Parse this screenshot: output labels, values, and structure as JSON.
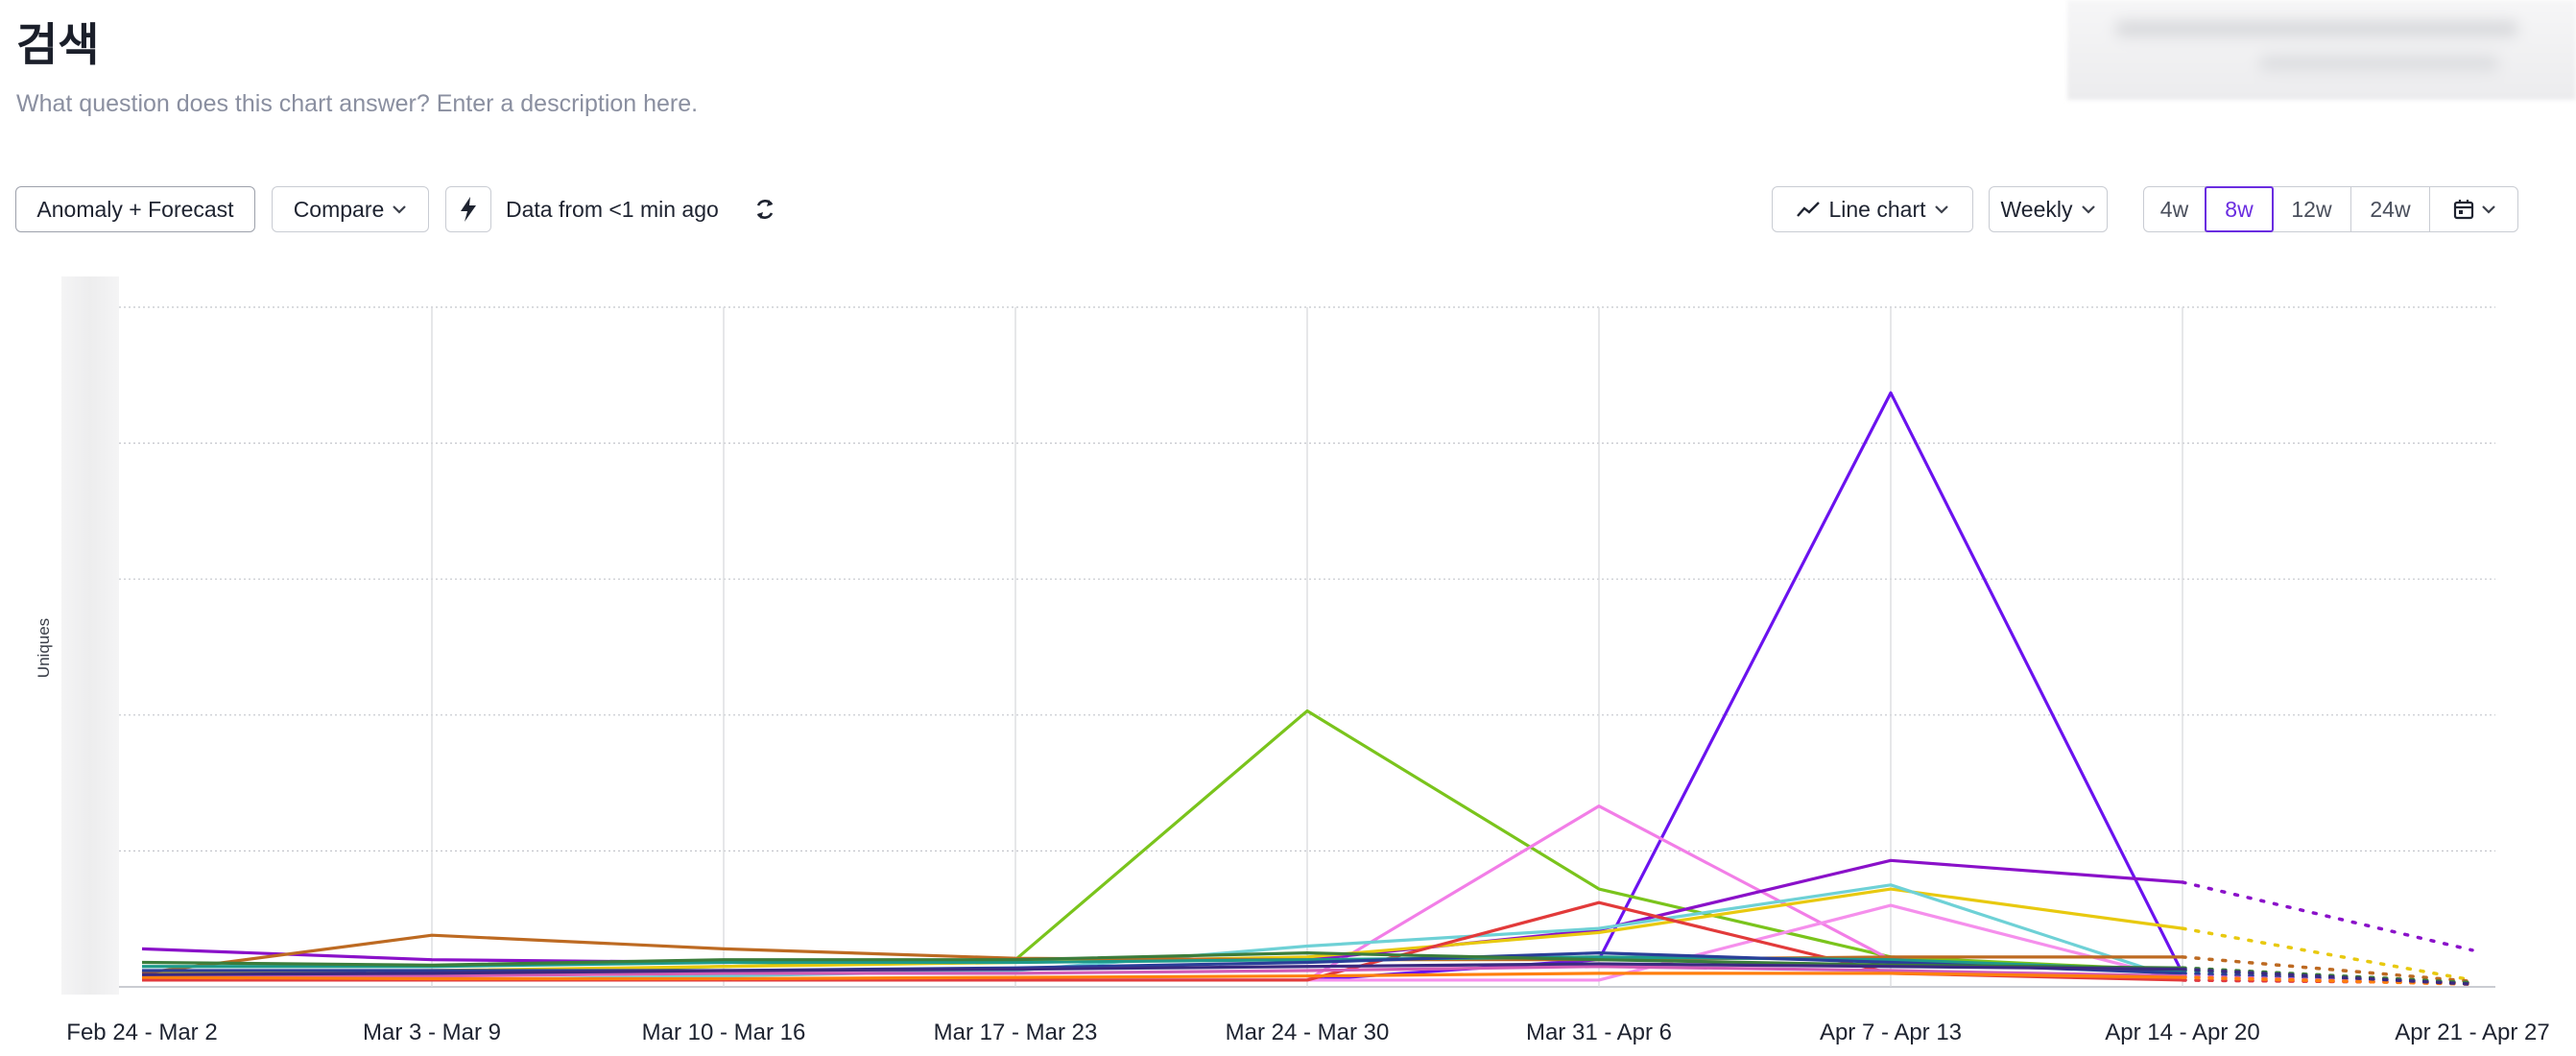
{
  "header": {
    "title": "검색",
    "description_placeholder": "What question does this chart answer? Enter a description here."
  },
  "toolbar": {
    "anomaly_label": "Anomaly + Forecast",
    "compare_label": "Compare",
    "data_status": "Data from <1 min ago",
    "chart_type_label": "Line chart",
    "interval_label": "Weekly",
    "ranges": [
      "4w",
      "8w",
      "12w",
      "24w"
    ],
    "active_range": "8w",
    "icons": {
      "bolt": "lightning-icon",
      "refresh": "refresh-icon",
      "line": "line-chart-icon",
      "calendar": "calendar-icon",
      "chevron": "chevron-down-icon"
    },
    "accent_color": "#6a2de0"
  },
  "chart_data": {
    "type": "line",
    "ylabel": "Uniques",
    "categories": [
      "Feb 24 - Mar 2",
      "Mar 3 - Mar 9",
      "Mar 10 - Mar 16",
      "Mar 17 - Mar 23",
      "Mar 24 - Mar 30",
      "Mar 31 - Apr 6",
      "Apr 7 - Apr 13",
      "Apr 14 - Apr 20",
      "Apr 21 - Apr 27"
    ],
    "forecast_from_index": 7,
    "ylim": [
      0,
      5
    ],
    "y_tick_labels_visible": false,
    "grid": true,
    "series": [
      {
        "color": "#6b12ef",
        "values": [
          0.05,
          0.05,
          0.05,
          0.05,
          0.05,
          0.2,
          4.37,
          0.1,
          0.03
        ]
      },
      {
        "color": "#7ac41c",
        "values": [
          0.1,
          0.1,
          0.15,
          0.2,
          2.03,
          0.72,
          0.22,
          0.12,
          0.03
        ]
      },
      {
        "color": "#f27ee7",
        "values": [
          0.05,
          0.05,
          0.05,
          0.05,
          0.05,
          1.33,
          0.2,
          0.1,
          0.03
        ]
      },
      {
        "color": "#8a11c9",
        "values": [
          0.28,
          0.2,
          0.18,
          0.2,
          0.2,
          0.42,
          0.93,
          0.77,
          0.27
        ]
      },
      {
        "color": "#e8c90f",
        "values": [
          0.1,
          0.12,
          0.15,
          0.18,
          0.22,
          0.4,
          0.72,
          0.43,
          0.05
        ]
      },
      {
        "color": "#6ed1d6",
        "values": [
          0.05,
          0.05,
          0.08,
          0.12,
          0.3,
          0.43,
          0.75,
          0.05,
          0.03
        ]
      },
      {
        "color": "#f58fec",
        "values": [
          0.05,
          0.05,
          0.05,
          0.05,
          0.05,
          0.05,
          0.6,
          0.05,
          0.03
        ]
      },
      {
        "color": "#e23a3a",
        "values": [
          0.05,
          0.05,
          0.05,
          0.05,
          0.05,
          0.62,
          0.1,
          0.05,
          0.03
        ]
      },
      {
        "color": "#bd6a22",
        "values": [
          0.1,
          0.38,
          0.28,
          0.21,
          0.2,
          0.2,
          0.22,
          0.22,
          0.04
        ]
      },
      {
        "color": "#1e9a8a",
        "values": [
          0.15,
          0.15,
          0.18,
          0.18,
          0.2,
          0.22,
          0.2,
          0.12,
          0.03
        ]
      },
      {
        "color": "#2a3f99",
        "values": [
          0.12,
          0.12,
          0.12,
          0.14,
          0.18,
          0.25,
          0.18,
          0.1,
          0.03
        ]
      },
      {
        "color": "#d35bb5",
        "values": [
          0.08,
          0.08,
          0.1,
          0.1,
          0.12,
          0.15,
          0.12,
          0.08,
          0.02
        ]
      },
      {
        "color": "#ff7f0e",
        "values": [
          0.07,
          0.06,
          0.06,
          0.07,
          0.08,
          0.1,
          0.1,
          0.07,
          0.02
        ]
      },
      {
        "color": "#3b7d3b",
        "values": [
          0.18,
          0.16,
          0.2,
          0.2,
          0.25,
          0.2,
          0.16,
          0.14,
          0.03
        ]
      },
      {
        "color": "#3a2a80",
        "values": [
          0.09,
          0.1,
          0.12,
          0.13,
          0.15,
          0.17,
          0.15,
          0.13,
          0.02
        ]
      }
    ]
  }
}
